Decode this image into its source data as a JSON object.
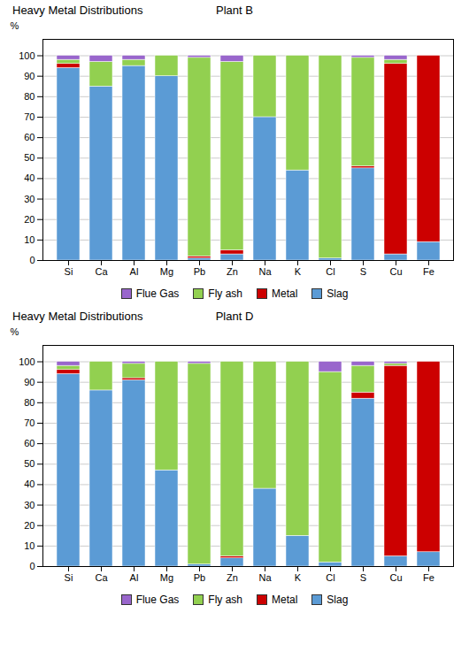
{
  "chart_data": [
    {
      "type": "bar",
      "title": "Heavy Metal Distributions",
      "subtitle": "Plant B",
      "categories": [
        "Si",
        "Ca",
        "Al",
        "Mg",
        "Pb",
        "Zn",
        "Na",
        "K",
        "Cl",
        "S",
        "Cu",
        "Fe"
      ],
      "series": [
        {
          "name": "Slag",
          "color": "#5B9BD5",
          "values": [
            94,
            85,
            95,
            90,
            1,
            3,
            70,
            44,
            1,
            45,
            3,
            9
          ]
        },
        {
          "name": "Metal",
          "color": "#CC0000",
          "values": [
            2,
            0,
            0,
            0,
            1,
            2,
            0,
            0,
            0,
            1,
            93,
            91
          ]
        },
        {
          "name": "Fly ash",
          "color": "#92D050",
          "values": [
            2,
            12,
            3,
            10,
            97,
            92,
            30,
            56,
            99,
            53,
            2,
            0
          ]
        },
        {
          "name": "Flue Gas",
          "color": "#9966CC",
          "values": [
            2,
            3,
            2,
            0,
            1,
            3,
            0,
            0,
            0,
            1,
            2,
            0
          ]
        }
      ],
      "ylabel": "%",
      "ylim": [
        0,
        108
      ],
      "yticks": [
        0,
        10,
        20,
        30,
        40,
        50,
        60,
        70,
        80,
        90,
        100
      ],
      "grid": true,
      "stacked": true,
      "legend": "bottom"
    },
    {
      "type": "bar",
      "title": "Heavy Metal Distributions",
      "subtitle": "Plant D",
      "categories": [
        "Si",
        "Ca",
        "Al",
        "Mg",
        "Pb",
        "Zn",
        "Na",
        "K",
        "Cl",
        "S",
        "Cu",
        "Fe"
      ],
      "series": [
        {
          "name": "Slag",
          "color": "#5B9BD5",
          "values": [
            94,
            86,
            91,
            47,
            1,
            4,
            38,
            15,
            2,
            82,
            5,
            7
          ]
        },
        {
          "name": "Metal",
          "color": "#CC0000",
          "values": [
            2,
            0,
            1,
            0,
            0,
            1,
            0,
            0,
            0,
            3,
            93,
            93
          ]
        },
        {
          "name": "Fly ash",
          "color": "#92D050",
          "values": [
            2,
            14,
            7,
            53,
            98,
            95,
            62,
            85,
            93,
            13,
            1,
            0
          ]
        },
        {
          "name": "Flue Gas",
          "color": "#9966CC",
          "values": [
            2,
            0,
            1,
            0,
            1,
            0,
            0,
            0,
            5,
            2,
            1,
            0
          ]
        }
      ],
      "ylabel": "%",
      "ylim": [
        0,
        108
      ],
      "yticks": [
        0,
        10,
        20,
        30,
        40,
        50,
        60,
        70,
        80,
        90,
        100
      ],
      "grid": true,
      "stacked": true,
      "legend": "bottom"
    }
  ]
}
